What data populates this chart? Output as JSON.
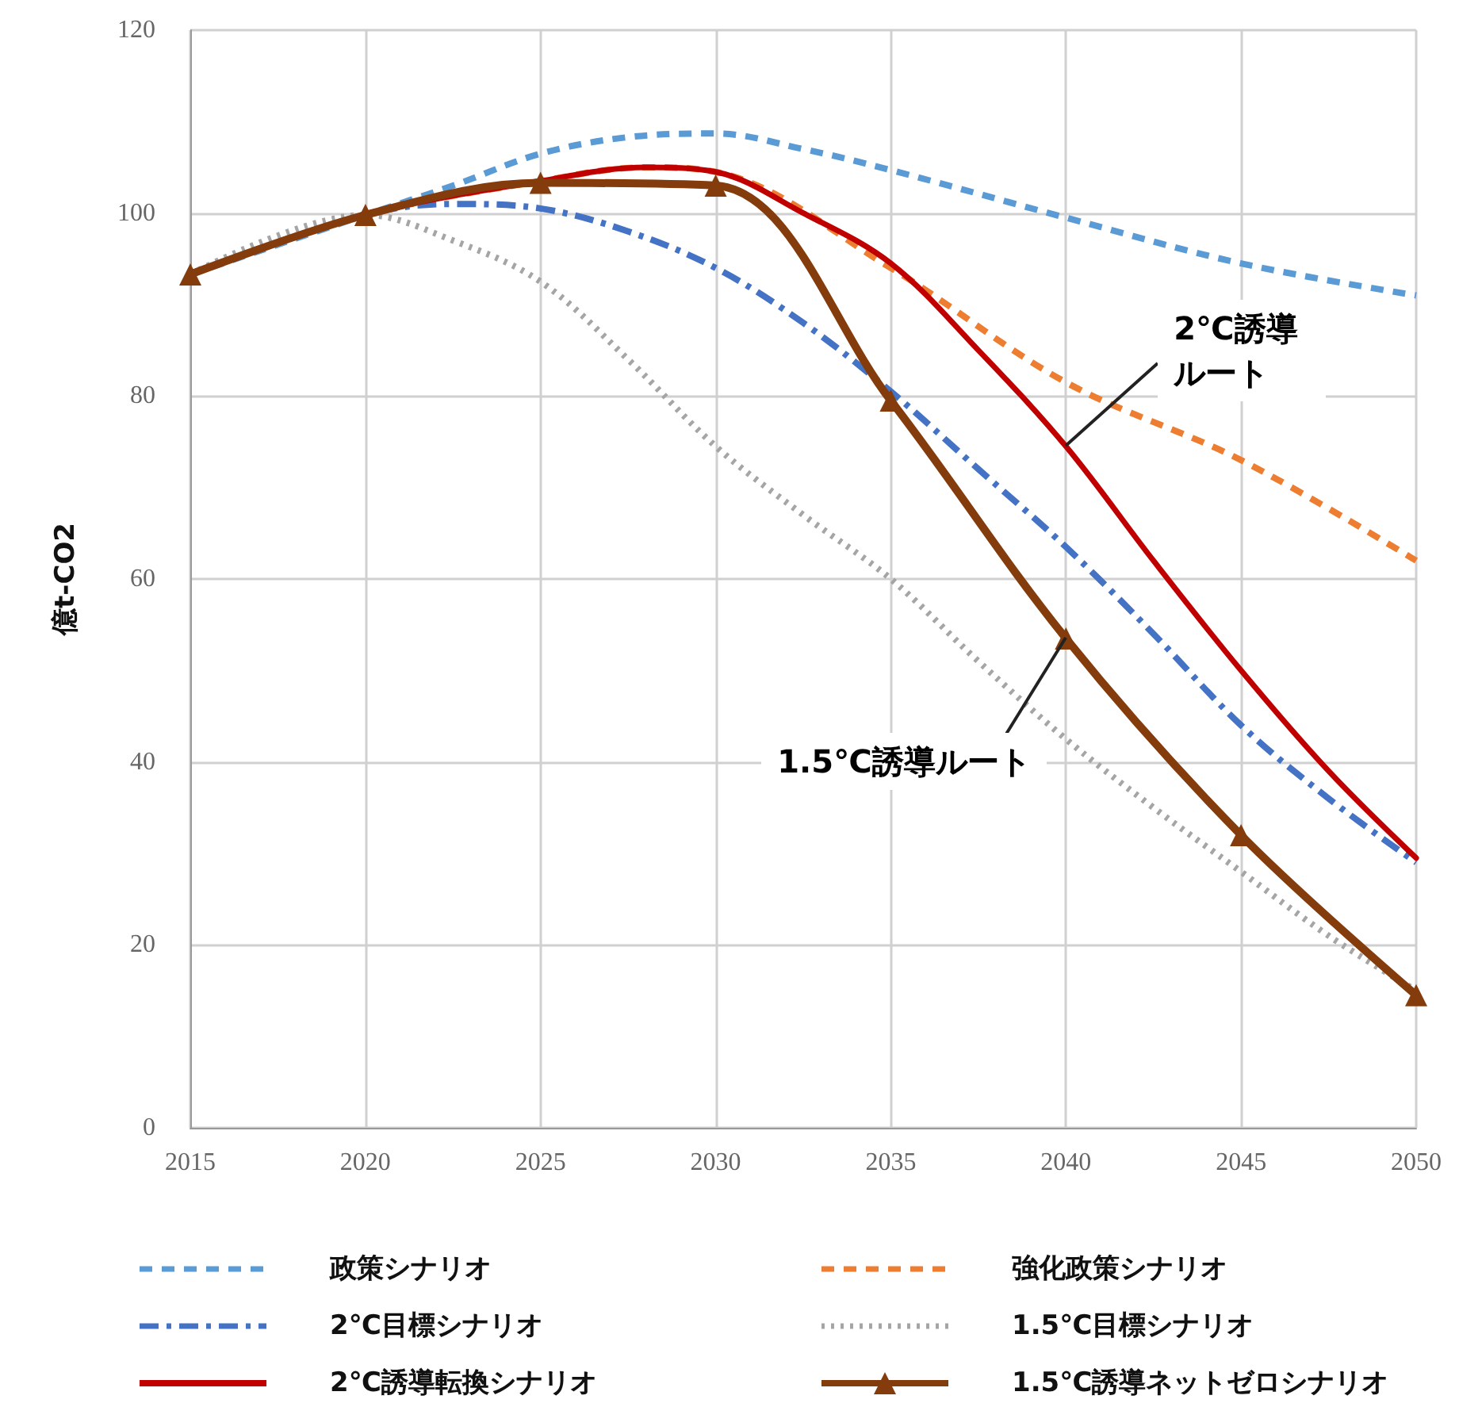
{
  "chart_data": {
    "type": "line",
    "ylabel": "億t-CO2",
    "xlim": [
      2015,
      2050
    ],
    "xticks": [
      2015,
      2020,
      2025,
      2030,
      2035,
      2040,
      2045,
      2050
    ],
    "ylim": [
      0,
      120
    ],
    "yticks": [
      0,
      20,
      40,
      60,
      80,
      100,
      120
    ],
    "grid": true,
    "legend": "bottom",
    "series": [
      {
        "name": "政策シナリオ",
        "color": "#5b9bd5",
        "line_style": "dashed",
        "marker": "none",
        "x": [
          2015,
          2020,
          2022.5,
          2025,
          2027.5,
          2030,
          2032.5,
          2035,
          2040,
          2045,
          2050
        ],
        "values": [
          93.3,
          99.8,
          103,
          106.5,
          108.3,
          108.7,
          107,
          104.7,
          99.5,
          94.5,
          91
        ]
      },
      {
        "name": "強化政策シナリオ",
        "color": "#ed7d31",
        "line_style": "dashed",
        "marker": "none",
        "x": [
          2015,
          2020,
          2025,
          2028,
          2030,
          2035,
          2040,
          2045,
          2050
        ],
        "values": [
          93.3,
          99.8,
          103.5,
          105,
          104.5,
          94,
          81.5,
          73,
          62
        ]
      },
      {
        "name": "2℃目標シナリオ",
        "color": "#4472c4",
        "line_style": "dashdot",
        "marker": "none",
        "x": [
          2015,
          2020,
          2022.5,
          2025,
          2027.5,
          2030,
          2032.5,
          2035,
          2037.5,
          2040,
          2042.5,
          2045,
          2047.5,
          2050
        ],
        "values": [
          93.3,
          99.8,
          101,
          100.5,
          98,
          94,
          88,
          80.5,
          72,
          63.5,
          54,
          44,
          36,
          29
        ]
      },
      {
        "name": "1.5℃目標シナリオ",
        "color": "#a5a5a5",
        "line_style": "dotted",
        "marker": "none",
        "x": [
          2015,
          2020,
          2022.5,
          2025,
          2027.5,
          2030,
          2032.5,
          2035,
          2037.5,
          2040,
          2042.5,
          2045,
          2047.5,
          2050
        ],
        "values": [
          93.3,
          99.8,
          97,
          92.5,
          84,
          74.5,
          67,
          60,
          51,
          42.5,
          35,
          28,
          21,
          15
        ]
      },
      {
        "name": "2℃誘導転換シナリオ",
        "color": "#c00000",
        "line_style": "solid",
        "marker": "none",
        "x": [
          2015,
          2020,
          2025,
          2028,
          2030,
          2032.5,
          2035,
          2037.5,
          2040,
          2042.5,
          2045,
          2047.5,
          2050
        ],
        "values": [
          93.3,
          99.8,
          103.5,
          105,
          104.5,
          100,
          94.5,
          85,
          74.5,
          62,
          50,
          39,
          29.5
        ]
      },
      {
        "name": "1.5℃誘導ネットゼロシナリオ",
        "color": "#843c0c",
        "line_style": "solid",
        "marker": "triangle",
        "x": [
          2015,
          2020,
          2025,
          2030,
          2035,
          2040,
          2045,
          2050
        ],
        "values": [
          93.3,
          99.8,
          103.3,
          103,
          79.5,
          53.5,
          32,
          14.5
        ]
      }
    ],
    "annotations": [
      {
        "text": "2℃誘導ルート",
        "x": 2040,
        "y": 74.5
      },
      {
        "text": "1.5℃誘導ルート",
        "x": 2040,
        "y": 53.5
      }
    ]
  }
}
